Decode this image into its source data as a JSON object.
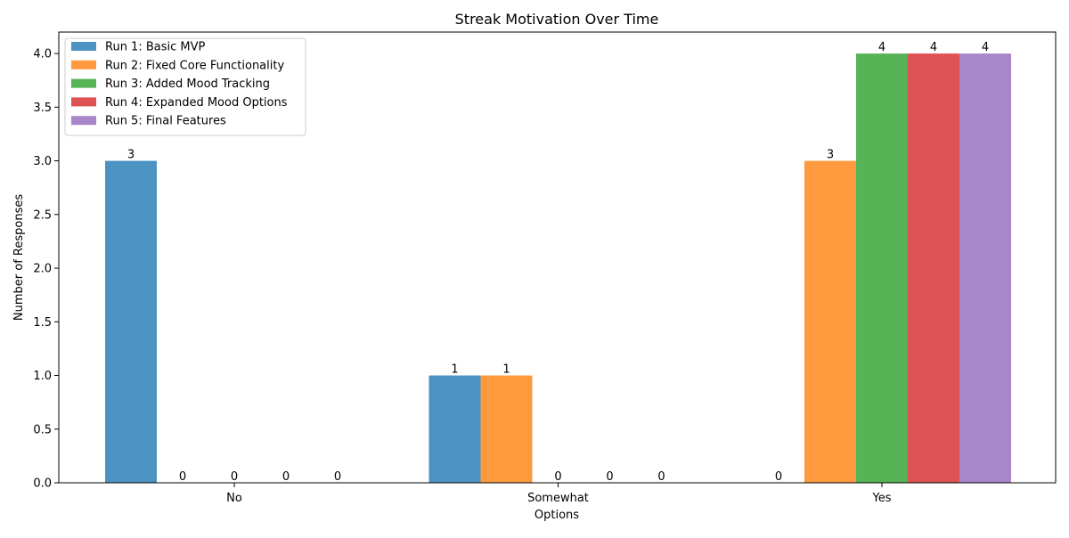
{
  "chart_data": {
    "type": "bar",
    "title": "Streak Motivation Over Time",
    "xlabel": "Options",
    "ylabel": "Number of Responses",
    "categories": [
      "No",
      "Somewhat",
      "Yes"
    ],
    "ylim": [
      0,
      4.2
    ],
    "yticks": [
      "0.0",
      "0.5",
      "1.0",
      "1.5",
      "2.0",
      "2.5",
      "3.0",
      "3.5",
      "4.0"
    ],
    "grid": false,
    "legend_position": "top-left",
    "series": [
      {
        "name": "Run 1: Basic MVP",
        "color": "#1f77b4",
        "values": [
          3,
          1,
          0
        ],
        "value_labels": [
          "3",
          "1",
          "0"
        ]
      },
      {
        "name": "Run 2: Fixed Core Functionality",
        "color": "#ff7f0e",
        "values": [
          0,
          1,
          3
        ],
        "value_labels": [
          "0",
          "1",
          "3"
        ]
      },
      {
        "name": "Run 3: Added Mood Tracking",
        "color": "#2ca02c",
        "values": [
          0,
          0,
          4
        ],
        "value_labels": [
          "0",
          "0",
          "4"
        ]
      },
      {
        "name": "Run 4: Expanded Mood Options",
        "color": "#d62728",
        "values": [
          0,
          0,
          4
        ],
        "value_labels": [
          "0",
          "0",
          "4"
        ]
      },
      {
        "name": "Run 5: Final Features",
        "color": "#9467bd",
        "values": [
          0,
          0,
          4
        ],
        "value_labels": [
          "0",
          "0",
          "4"
        ]
      }
    ]
  }
}
